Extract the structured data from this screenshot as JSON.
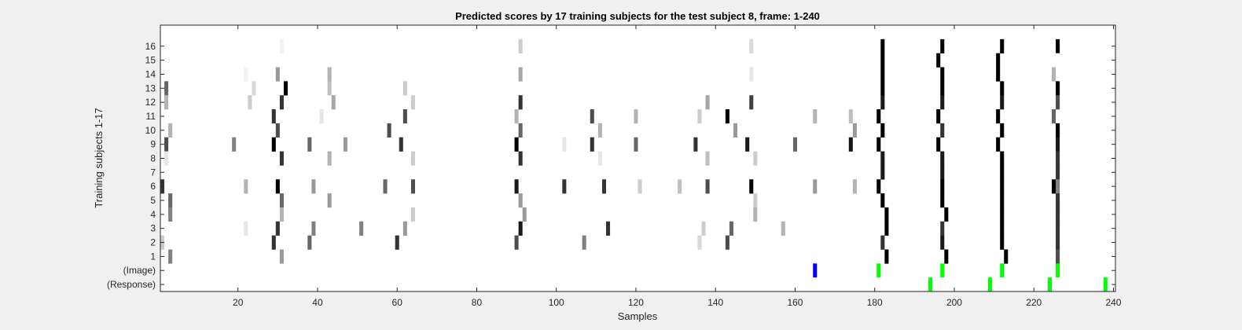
{
  "chart_data": {
    "type": "heatmap",
    "title": "Predicted scores by 17 training subjects for the test subject 8, frame: 1-240",
    "xlabel": "Samples",
    "ylabel": "Training subjects 1-17",
    "xlim": [
      1,
      240
    ],
    "x_ticks": [
      20,
      40,
      60,
      80,
      100,
      120,
      140,
      160,
      180,
      200,
      220,
      240
    ],
    "y_tick_labels": [
      "16",
      "15",
      "14",
      "13",
      "12",
      "11",
      "10",
      "9",
      "8",
      "7",
      "6",
      "5",
      "4",
      "3",
      "2",
      "1",
      "(Image)",
      "(Response)"
    ],
    "colormap": "gray (white = 0, black = 1)",
    "rows": [
      {
        "label": "16",
        "cells": [
          [
            31,
            0.05
          ],
          [
            91,
            0.2
          ],
          [
            149,
            0.15
          ],
          [
            182,
            1
          ],
          [
            197,
            1
          ],
          [
            212,
            1
          ],
          [
            226,
            1
          ]
        ]
      },
      {
        "label": "15",
        "cells": [
          [
            182,
            1
          ],
          [
            196,
            1
          ],
          [
            211,
            1
          ],
          [
            226,
            0
          ]
        ]
      },
      {
        "label": "14",
        "cells": [
          [
            22,
            0.05
          ],
          [
            30,
            0.4
          ],
          [
            43,
            0.3
          ],
          [
            91,
            0.35
          ],
          [
            149,
            0.1
          ],
          [
            182,
            1
          ],
          [
            197,
            1
          ],
          [
            211,
            1
          ],
          [
            225,
            0.3
          ]
        ]
      },
      {
        "label": "13",
        "cells": [
          [
            2,
            0.6
          ],
          [
            24,
            0.15
          ],
          [
            32,
            1
          ],
          [
            43,
            0.25
          ],
          [
            62,
            0.2
          ],
          [
            182,
            1
          ],
          [
            197,
            1
          ],
          [
            212,
            1
          ],
          [
            226,
            1
          ]
        ]
      },
      {
        "label": "12",
        "cells": [
          [
            2,
            0.3
          ],
          [
            23,
            0.2
          ],
          [
            31,
            0.8
          ],
          [
            44,
            0.35
          ],
          [
            64,
            0.2
          ],
          [
            91,
            0.8
          ],
          [
            138,
            0.35
          ],
          [
            149,
            0.75
          ],
          [
            182,
            0.9
          ],
          [
            197,
            0.9
          ],
          [
            212,
            0.9
          ],
          [
            226,
            0.7
          ]
        ]
      },
      {
        "label": "11",
        "cells": [
          [
            29,
            0.8
          ],
          [
            41,
            0.1
          ],
          [
            62,
            0.7
          ],
          [
            90,
            0.3
          ],
          [
            109,
            0.7
          ],
          [
            120,
            0.3
          ],
          [
            136,
            0.2
          ],
          [
            143,
            1
          ],
          [
            165,
            0.3
          ],
          [
            174,
            0.25
          ],
          [
            181,
            1
          ],
          [
            196,
            1
          ],
          [
            211,
            1
          ],
          [
            225,
            0.6
          ]
        ]
      },
      {
        "label": "10",
        "cells": [
          [
            3,
            0.3
          ],
          [
            30,
            0.7
          ],
          [
            58,
            0.7
          ],
          [
            91,
            0.6
          ],
          [
            111,
            0.3
          ],
          [
            145,
            0.4
          ],
          [
            175,
            0.4
          ],
          [
            182,
            1
          ],
          [
            197,
            0.8
          ],
          [
            212,
            1
          ],
          [
            226,
            1
          ]
        ]
      },
      {
        "label": "9",
        "cells": [
          [
            2,
            0.7
          ],
          [
            19,
            0.5
          ],
          [
            29,
            1
          ],
          [
            38,
            0.6
          ],
          [
            47,
            0.4
          ],
          [
            61,
            0.8
          ],
          [
            90,
            1
          ],
          [
            102,
            0.1
          ],
          [
            109,
            0.8
          ],
          [
            120,
            0.6
          ],
          [
            135,
            0.8
          ],
          [
            148,
            0.9
          ],
          [
            160,
            0.6
          ],
          [
            174,
            0.9
          ],
          [
            181,
            1
          ],
          [
            196,
            1
          ],
          [
            211,
            1
          ],
          [
            226,
            0.9
          ]
        ]
      },
      {
        "label": "8",
        "cells": [
          [
            2,
            0.1
          ],
          [
            31,
            0.8
          ],
          [
            43,
            0.3
          ],
          [
            64,
            0.2
          ],
          [
            91,
            0.8
          ],
          [
            111,
            0.1
          ],
          [
            138,
            0.25
          ],
          [
            150,
            0.2
          ],
          [
            182,
            0.9
          ],
          [
            197,
            0.9
          ],
          [
            212,
            1
          ],
          [
            226,
            0.8
          ]
        ]
      },
      {
        "label": "7",
        "cells": [
          [
            182,
            0.9
          ],
          [
            197,
            0.9
          ],
          [
            212,
            1
          ],
          [
            226,
            0.8
          ]
        ]
      },
      {
        "label": "6",
        "cells": [
          [
            1,
            0.8
          ],
          [
            22,
            0.3
          ],
          [
            30,
            1
          ],
          [
            39,
            0.4
          ],
          [
            57,
            0.6
          ],
          [
            64,
            0.7
          ],
          [
            90,
            0.9
          ],
          [
            102,
            0.8
          ],
          [
            112,
            0.8
          ],
          [
            121,
            0.2
          ],
          [
            131,
            0.25
          ],
          [
            138,
            0.7
          ],
          [
            149,
            1
          ],
          [
            165,
            0.4
          ],
          [
            175,
            0.3
          ],
          [
            181,
            1
          ],
          [
            197,
            1
          ],
          [
            212,
            1
          ],
          [
            225,
            1
          ],
          [
            226,
            0.5
          ]
        ]
      },
      {
        "label": "5",
        "cells": [
          [
            3,
            0.6
          ],
          [
            31,
            0.6
          ],
          [
            43,
            0.4
          ],
          [
            91,
            0.4
          ],
          [
            150,
            0.2
          ],
          [
            182,
            1
          ],
          [
            197,
            1
          ],
          [
            212,
            1
          ],
          [
            226,
            0.8
          ]
        ]
      },
      {
        "label": "4",
        "cells": [
          [
            3,
            0.5
          ],
          [
            31,
            0.3
          ],
          [
            64,
            0.2
          ],
          [
            92,
            0.4
          ],
          [
            150,
            0.3
          ],
          [
            183,
            1
          ],
          [
            198,
            1
          ],
          [
            212,
            1
          ],
          [
            226,
            0.8
          ]
        ]
      },
      {
        "label": "3",
        "cells": [
          [
            22,
            0.1
          ],
          [
            30,
            0.8
          ],
          [
            39,
            0.5
          ],
          [
            51,
            0.5
          ],
          [
            62,
            0.4
          ],
          [
            91,
            0.9
          ],
          [
            113,
            0.8
          ],
          [
            137,
            0.2
          ],
          [
            144,
            0.6
          ],
          [
            157,
            0.3
          ],
          [
            183,
            1
          ],
          [
            197,
            0.8
          ],
          [
            212,
            1
          ],
          [
            226,
            0.8
          ]
        ]
      },
      {
        "label": "2",
        "cells": [
          [
            1,
            0.2
          ],
          [
            29,
            0.8
          ],
          [
            38,
            0.6
          ],
          [
            60,
            0.8
          ],
          [
            90,
            0.7
          ],
          [
            107,
            0.5
          ],
          [
            136,
            0.15
          ],
          [
            143,
            0.7
          ],
          [
            182,
            0.8
          ],
          [
            197,
            0.9
          ],
          [
            212,
            1
          ],
          [
            226,
            0.8
          ]
        ]
      },
      {
        "label": "1",
        "cells": [
          [
            3,
            0.5
          ],
          [
            31,
            0.4
          ],
          [
            183,
            1
          ],
          [
            198,
            1
          ],
          [
            213,
            1
          ],
          [
            226,
            0.7
          ]
        ]
      }
    ],
    "markers": [
      {
        "label": "(Image)",
        "cells": [
          [
            165,
            "#0000ff"
          ],
          [
            181,
            "#00ff00"
          ],
          [
            197,
            "#00ff00"
          ],
          [
            212,
            "#00ff00"
          ],
          [
            226,
            "#00ff00"
          ]
        ]
      },
      {
        "label": "(Response)",
        "cells": [
          [
            194,
            "#00ff00"
          ],
          [
            209,
            "#00ff00"
          ],
          [
            224,
            "#00ff00"
          ],
          [
            238,
            "#00ff00"
          ]
        ]
      }
    ]
  }
}
